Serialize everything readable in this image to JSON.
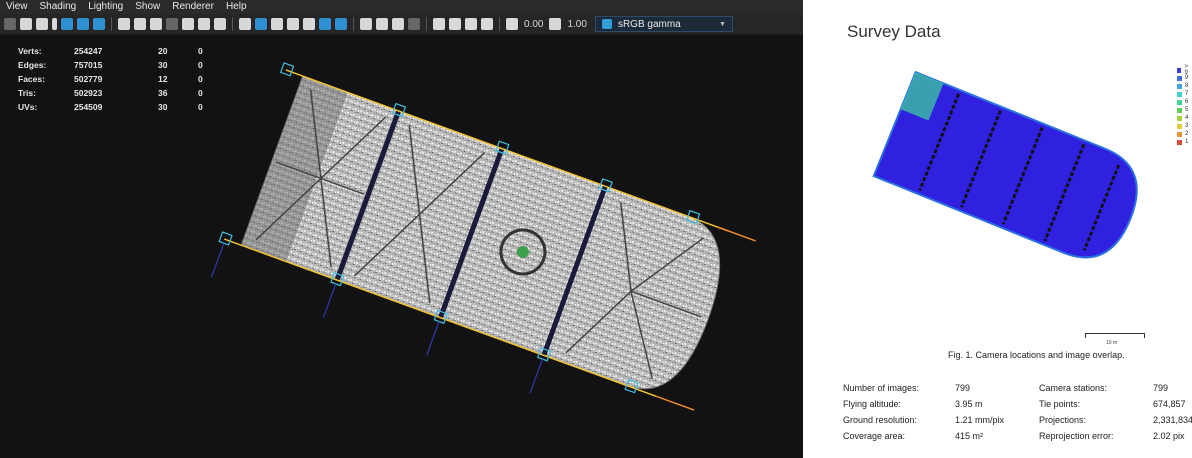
{
  "menu": [
    "View",
    "Shading",
    "Lighting",
    "Show",
    "Renderer",
    "Help"
  ],
  "toolbar": {
    "value_1": "0.00",
    "value_2": "1.00",
    "colorspace": "sRGB gamma",
    "chevron": "▼"
  },
  "stats": [
    {
      "label": "Verts:",
      "v1": "254247",
      "v2": "20",
      "v3": "0"
    },
    {
      "label": "Edges:",
      "v1": "757015",
      "v2": "30",
      "v3": "0"
    },
    {
      "label": "Faces:",
      "v1": "502779",
      "v2": "12",
      "v3": "0"
    },
    {
      "label": "Tris:",
      "v1": "502923",
      "v2": "36",
      "v3": "0"
    },
    {
      "label": "UVs:",
      "v1": "254509",
      "v2": "30",
      "v3": "0"
    }
  ],
  "report": {
    "title": "Survey Data",
    "legend": [
      {
        "label": "> 9",
        "color": "#3b3bd6"
      },
      {
        "label": "9",
        "color": "#3f70d8"
      },
      {
        "label": "8",
        "color": "#3fa5dc"
      },
      {
        "label": "7",
        "color": "#3fd0d0"
      },
      {
        "label": "6",
        "color": "#3fd59a"
      },
      {
        "label": "5",
        "color": "#5fd04f"
      },
      {
        "label": "4",
        "color": "#a6d43f"
      },
      {
        "label": "3",
        "color": "#e0cc3a"
      },
      {
        "label": "2",
        "color": "#e8923a"
      },
      {
        "label": "1",
        "color": "#e04a3a"
      }
    ],
    "scale_label": "10 m",
    "caption": "Fig. 1. Camera locations and image overlap.",
    "left_table": [
      {
        "label": "Number of images:",
        "value": "799"
      },
      {
        "label": "Flying altitude:",
        "value": "3.95 m"
      },
      {
        "label": "Ground resolution:",
        "value": "1.21 mm/pix"
      },
      {
        "label": "Coverage area:",
        "value": "415 m²"
      }
    ],
    "right_table": [
      {
        "label": "Camera stations:",
        "value": "799"
      },
      {
        "label": "Tie points:",
        "value": "674,857"
      },
      {
        "label": "Projections:",
        "value": "2,331,834"
      },
      {
        "label": "Reprojection error:",
        "value": "2.02 pix"
      }
    ]
  }
}
